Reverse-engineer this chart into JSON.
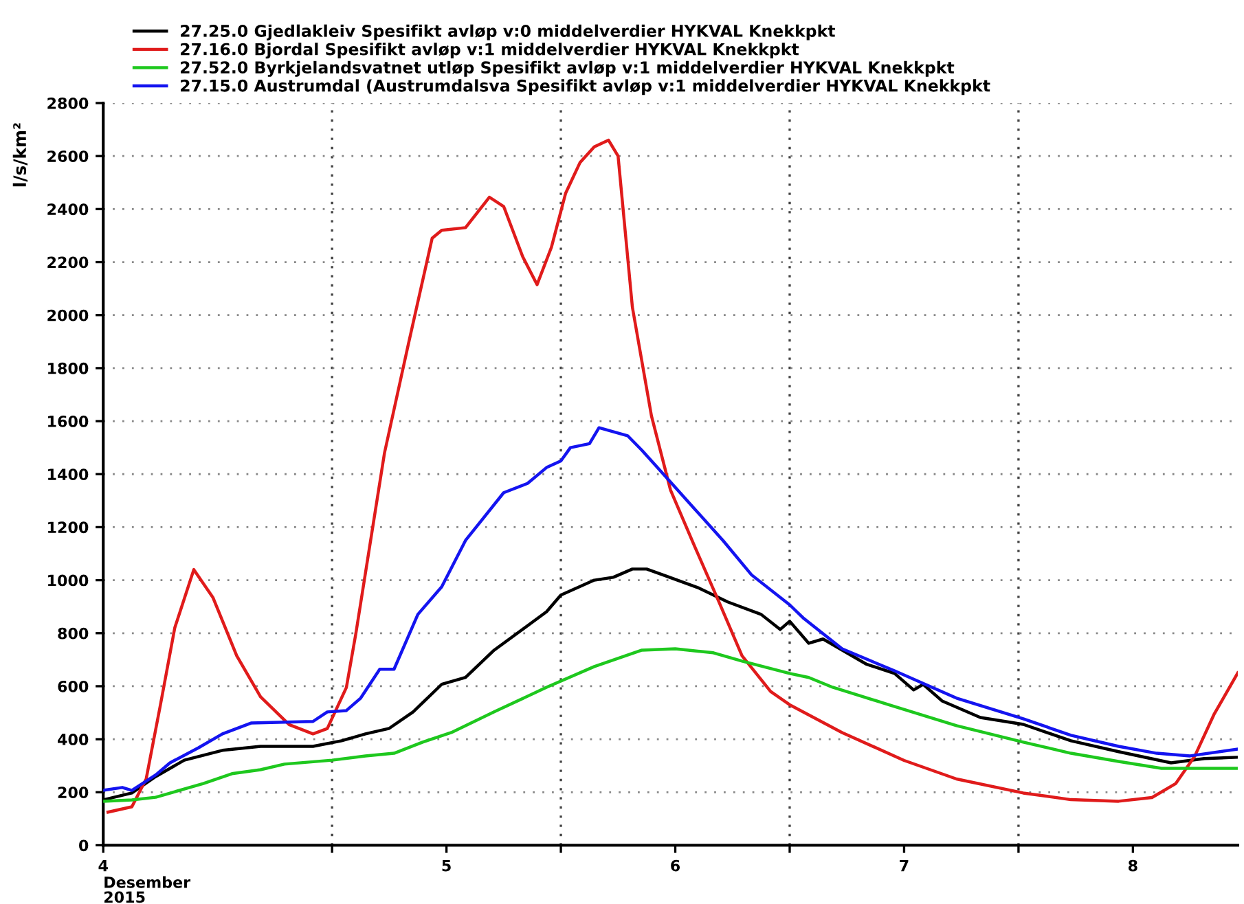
{
  "chart_data": {
    "type": "line",
    "ylabel": "l/s/km²",
    "xlabel": "Desember\n2015",
    "xlim": [
      "2015-12-04T00:00",
      "2015-12-08T23:00"
    ],
    "xticks": [
      {
        "value": "2015-12-04T00:00",
        "label": "4"
      },
      {
        "value": "2015-12-05T00:00",
        "label": null
      },
      {
        "value": "2015-12-05T12:00",
        "label": "5"
      },
      {
        "value": "2015-12-06T00:00",
        "label": null
      },
      {
        "value": "2015-12-06T12:00",
        "label": "6"
      },
      {
        "value": "2015-12-07T00:00",
        "label": null
      },
      {
        "value": "2015-12-07T12:00",
        "label": "7"
      },
      {
        "value": "2015-12-08T00:00",
        "label": null
      },
      {
        "value": "2015-12-08T12:00",
        "label": "8"
      }
    ],
    "ylim": [
      0,
      2800
    ],
    "yticks": [
      0,
      200,
      400,
      600,
      800,
      1000,
      1200,
      1400,
      1600,
      1800,
      2000,
      2200,
      2400,
      2600,
      2800
    ],
    "grid": "y",
    "legend": "top left",
    "marker": "none",
    "line_style": "solid",
    "ref_lines": [
      {
        "axis": "x",
        "value": "2015-12-05T00:00",
        "line_style": "dotted"
      },
      {
        "axis": "x",
        "value": "2015-12-06T00:00",
        "line_style": "dotted"
      },
      {
        "axis": "x",
        "value": "2015-12-07T00:00",
        "line_style": "dotted"
      },
      {
        "axis": "x",
        "value": "2015-12-08T00:00",
        "line_style": "dotted"
      }
    ],
    "series": [
      {
        "name": "27.25.0 Gjedlakleiv Spesifikt avløp v:0 middelverdier HYKVAL Knekkpkt",
        "color": "#000000",
        "x": [
          "2015-12-04T00:00",
          "2015-12-04T03:00",
          "2015-12-04T05:30",
          "2015-12-04T08:30",
          "2015-12-04T12:30",
          "2015-12-04T16:30",
          "2015-12-04T22:00",
          "2015-12-05T01:00",
          "2015-12-05T03:30",
          "2015-12-05T06:00",
          "2015-12-05T08:30",
          "2015-12-05T11:30",
          "2015-12-05T14:00",
          "2015-12-05T17:00",
          "2015-12-05T22:30",
          "2015-12-06T00:00",
          "2015-12-06T03:30",
          "2015-12-06T05:30",
          "2015-12-06T07:30",
          "2015-12-06T09:00",
          "2015-12-06T11:00",
          "2015-12-06T14:30",
          "2015-12-06T17:30",
          "2015-12-06T21:00",
          "2015-12-06T23:00",
          "2015-12-07T00:00",
          "2015-12-07T02:00",
          "2015-12-07T03:30",
          "2015-12-07T08:00",
          "2015-12-07T11:00",
          "2015-12-07T13:00",
          "2015-12-07T14:00",
          "2015-12-07T16:00",
          "2015-12-07T20:00",
          "2015-12-08T00:30",
          "2015-12-08T05:30",
          "2015-12-08T10:30",
          "2015-12-08T16:00",
          "2015-12-08T19:30",
          "2015-12-08T23:00"
        ],
        "values": [
          171,
          197,
          259,
          321,
          358,
          373,
          373,
          394,
          420,
          441,
          503,
          607,
          633,
          736,
          881,
          944,
          1000,
          1011,
          1042,
          1042,
          1016,
          970,
          918,
          871,
          814,
          845,
          762,
          778,
          684,
          648,
          586,
          607,
          544,
          482,
          456,
          394,
          353,
          311,
          327,
          332
        ]
      },
      {
        "name": "27.16.0 Bjordal Spesifikt avløp v:1 middelverdier HYKVAL Knekkpkt",
        "color": "#e01b1b",
        "x": [
          "2015-12-04T00:30",
          "2015-12-04T03:00",
          "2015-12-04T04:30",
          "2015-12-04T06:00",
          "2015-12-04T07:30",
          "2015-12-04T09:30",
          "2015-12-04T11:30",
          "2015-12-04T14:00",
          "2015-12-04T16:30",
          "2015-12-04T19:30",
          "2015-12-04T22:00",
          "2015-12-04T23:30",
          "2015-12-05T01:30",
          "2015-12-05T02:30",
          "2015-12-05T05:30",
          "2015-12-05T08:00",
          "2015-12-05T10:30",
          "2015-12-05T11:30",
          "2015-12-05T14:00",
          "2015-12-05T16:30",
          "2015-12-05T18:00",
          "2015-12-05T20:00",
          "2015-12-05T21:30",
          "2015-12-05T23:00",
          "2015-12-06T00:30",
          "2015-12-06T02:00",
          "2015-12-06T03:30",
          "2015-12-06T05:00",
          "2015-12-06T06:00",
          "2015-12-06T07:30",
          "2015-12-06T09:30",
          "2015-12-06T11:30",
          "2015-12-06T14:00",
          "2015-12-06T16:30",
          "2015-12-06T19:00",
          "2015-12-06T22:00",
          "2015-12-07T00:00",
          "2015-12-07T05:30",
          "2015-12-07T12:00",
          "2015-12-07T17:30",
          "2015-12-08T00:30",
          "2015-12-08T05:30",
          "2015-12-08T10:30",
          "2015-12-08T14:00",
          "2015-12-08T16:30",
          "2015-12-08T18:30",
          "2015-12-08T20:30",
          "2015-12-08T23:00"
        ],
        "values": [
          125,
          145,
          250,
          530,
          820,
          1040,
          935,
          715,
          560,
          455,
          420,
          440,
          595,
          800,
          1480,
          1890,
          2290,
          2320,
          2330,
          2445,
          2410,
          2220,
          2115,
          2255,
          2460,
          2575,
          2635,
          2660,
          2600,
          2030,
          1620,
          1340,
          1130,
          925,
          715,
          580,
          530,
          425,
          320,
          250,
          197,
          172,
          166,
          180,
          233,
          337,
          493,
          650
        ]
      },
      {
        "name": "27.52.0 Byrkjelandsvatnet utløp Spesifikt avløp v:1 middelverdier HYKVAL Knekkpkt",
        "color": "#1ec81e",
        "x": [
          "2015-12-04T00:00",
          "2015-12-04T03:00",
          "2015-12-04T05:30",
          "2015-12-04T07:30",
          "2015-12-04T10:30",
          "2015-12-04T13:30",
          "2015-12-04T16:30",
          "2015-12-04T19:00",
          "2015-12-05T00:00",
          "2015-12-05T03:30",
          "2015-12-05T06:30",
          "2015-12-05T09:30",
          "2015-12-05T12:30",
          "2015-12-05T17:00",
          "2015-12-05T22:30",
          "2015-12-06T03:30",
          "2015-12-06T08:30",
          "2015-12-06T12:00",
          "2015-12-06T16:00",
          "2015-12-06T19:00",
          "2015-12-07T00:00",
          "2015-12-07T02:00",
          "2015-12-07T04:30",
          "2015-12-07T10:30",
          "2015-12-07T17:30",
          "2015-12-08T00:30",
          "2015-12-08T05:30",
          "2015-12-08T10:30",
          "2015-12-08T15:00",
          "2015-12-08T23:00"
        ],
        "values": [
          166,
          171,
          181,
          202,
          233,
          270,
          285,
          306,
          321,
          337,
          347,
          389,
          425,
          503,
          596,
          674,
          736,
          741,
          726,
          695,
          648,
          633,
          596,
          529,
          451,
          389,
          347,
          316,
          290,
          290
        ]
      },
      {
        "name": "27.15.0 Austrumdal (Austrumdalsva Spesifikt avløp v:1 middelverdier HYKVAL Knekkpkt",
        "color": "#1414f0",
        "x": [
          "2015-12-04T00:00",
          "2015-12-04T02:00",
          "2015-12-04T03:00",
          "2015-12-04T05:30",
          "2015-12-04T07:00",
          "2015-12-04T10:00",
          "2015-12-04T12:30",
          "2015-12-04T15:30",
          "2015-12-04T22:00",
          "2015-12-04T23:30",
          "2015-12-05T01:30",
          "2015-12-05T03:00",
          "2015-12-05T05:00",
          "2015-12-05T06:30",
          "2015-12-05T09:00",
          "2015-12-05T11:30",
          "2015-12-05T14:00",
          "2015-12-05T18:00",
          "2015-12-05T20:30",
          "2015-12-05T22:30",
          "2015-12-06T00:00",
          "2015-12-06T01:00",
          "2015-12-06T03:00",
          "2015-12-06T04:00",
          "2015-12-06T07:00",
          "2015-12-06T08:30",
          "2015-12-06T11:00",
          "2015-12-06T14:00",
          "2015-12-06T17:00",
          "2015-12-06T20:00",
          "2015-12-07T00:00",
          "2015-12-07T01:30",
          "2015-12-07T05:30",
          "2015-12-07T11:00",
          "2015-12-07T17:30",
          "2015-12-08T00:30",
          "2015-12-08T05:30",
          "2015-12-08T10:30",
          "2015-12-08T14:30",
          "2015-12-08T18:00",
          "2015-12-08T23:00"
        ],
        "values": [
          207,
          218,
          207,
          265,
          311,
          368,
          420,
          461,
          467,
          503,
          508,
          555,
          664,
          664,
          871,
          975,
          1150,
          1330,
          1365,
          1425,
          1450,
          1500,
          1515,
          1575,
          1545,
          1490,
          1390,
          1270,
          1150,
          1020,
          907,
          855,
          741,
          658,
          555,
          477,
          415,
          373,
          347,
          337,
          363
        ]
      }
    ]
  }
}
